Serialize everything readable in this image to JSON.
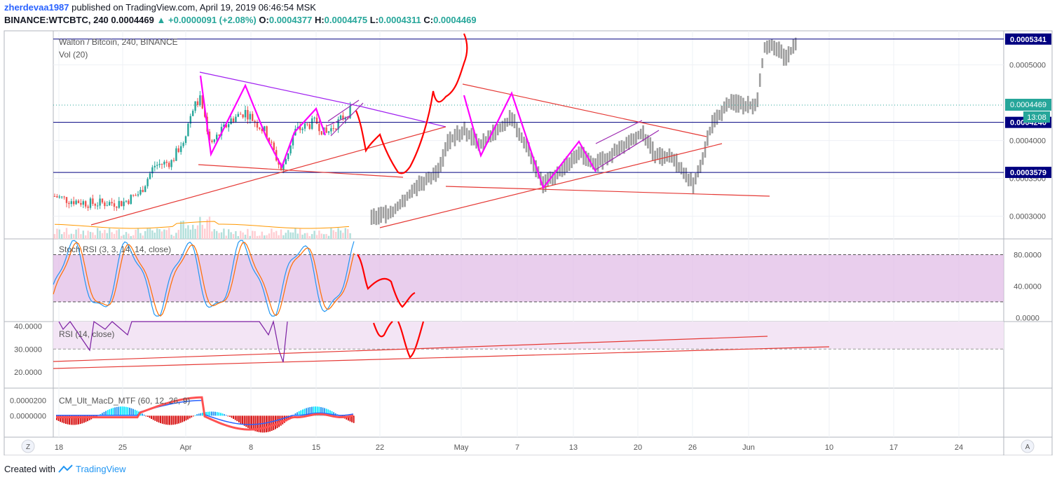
{
  "header": {
    "username": "zherdevaa1987",
    "published": "published on TradingView.com, April 19, 2019 06:46:54 MSK",
    "symbol": "BINANCE:WTCBTC, 240",
    "last": "0.0004469",
    "change": "+0.0000091 (+2.08%)",
    "o_label": "O:",
    "o": "0.0004377",
    "h_label": "H:",
    "h": "0.0004475",
    "l_label": "L:",
    "l": "0.0004311",
    "c_label": "C:",
    "c": "0.0004469"
  },
  "colors": {
    "up": "#26a69a",
    "down": "#ef5350",
    "drawing": "#ff0000",
    "magenta": "#ff00ff",
    "purple": "#9c27b0",
    "navy": "#000080",
    "stoch_band": "#e1bee7"
  },
  "chart_data": [
    {
      "type": "candlestick",
      "title": "Walton / Bitcoin, 240, BINANCE",
      "subtitle": "Vol (20)",
      "price_axis_ticks": [
        "0.0005000",
        "0.0004000",
        "0.0003500",
        "0.0003000"
      ],
      "ylim": [
        0.00027,
        0.000545
      ],
      "horizontal_levels": [
        0.0005341,
        0.000424,
        0.0003579
      ],
      "level_labels": [
        "0.0005341",
        "0.0004240",
        "0.0003579"
      ],
      "last_price_label": "0.0004469",
      "countdown_label": "13:08",
      "x_tick_labels": [
        "18",
        "25",
        "Apr",
        "8",
        "15",
        "22",
        "May",
        "7",
        "13",
        "20",
        "26",
        "Jun",
        "10",
        "17",
        "24"
      ]
    },
    {
      "type": "line",
      "title": "Stoch RSI (3, 3, 14, 14, close)",
      "ticks": [
        "80.0000",
        "40.0000",
        "0.0000"
      ],
      "ylim": [
        -5,
        100
      ],
      "band": [
        20,
        80
      ]
    },
    {
      "type": "line",
      "title": "RSI (14, close)",
      "ticks": [
        "40.0000",
        "30.0000",
        "20.0000"
      ],
      "ylim": [
        13,
        42
      ],
      "band": [
        30,
        70
      ]
    },
    {
      "type": "bar",
      "title": "CM_Ult_MacD_MTF (60, 12, 26, 9)",
      "ticks": [
        "0.0000200",
        "0.0000000"
      ],
      "ylim": [
        -2.8e-05,
        3.6e-05
      ]
    }
  ],
  "corner_left": "Z",
  "corner_right": "A",
  "footer": {
    "created_with": "Created with",
    "brand": "TradingView"
  }
}
